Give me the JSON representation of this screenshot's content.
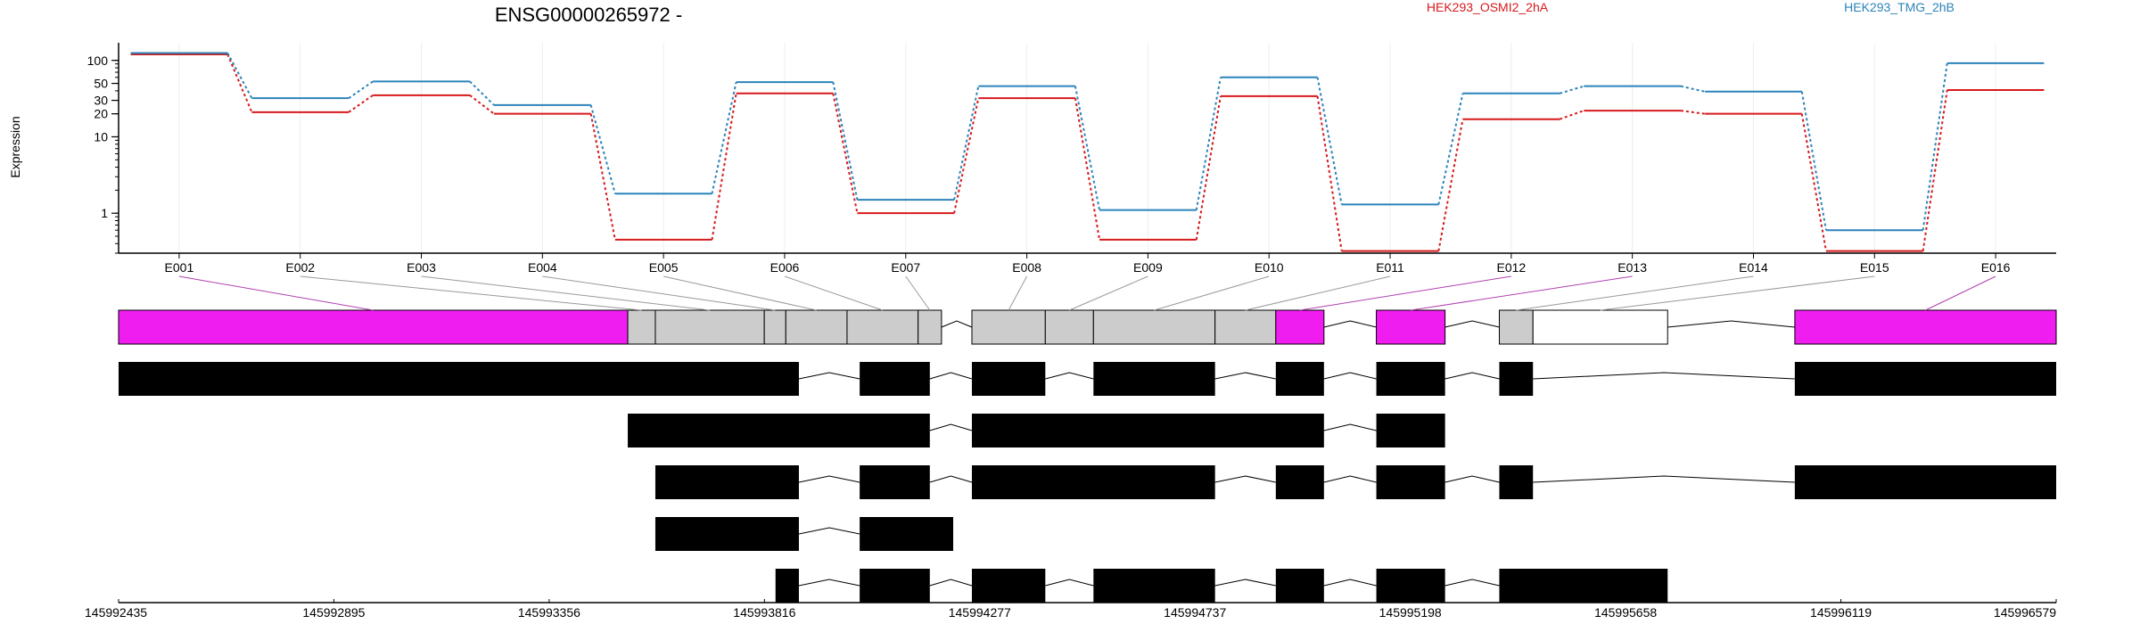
{
  "title": "ENSG00000265972 -",
  "chart_data": {
    "type": "line",
    "title": "ENSG00000265972 -",
    "xlabel": "",
    "ylabel": "Expression",
    "yscale": "log",
    "ylim": [
      0.3,
      170
    ],
    "yticks": [
      {
        "v": 1,
        "label": "1"
      },
      {
        "v": 10,
        "label": "10"
      },
      {
        "v": 20,
        "label": "20"
      },
      {
        "v": 30,
        "label": "30"
      },
      {
        "v": 50,
        "label": "50"
      },
      {
        "v": 100,
        "label": "100"
      }
    ],
    "categories": [
      "E001",
      "E002",
      "E003",
      "E004",
      "E005",
      "E006",
      "E007",
      "E008",
      "E009",
      "E010",
      "E011",
      "E012",
      "E013",
      "E014",
      "E015",
      "E016"
    ],
    "legend_position": "top-right",
    "grid": true,
    "series": [
      {
        "name": "HEK293_OSMI2_2hA",
        "color": "#d7191c",
        "values": [
          120,
          21,
          35,
          20,
          0.45,
          37,
          1.0,
          32,
          0.45,
          34,
          0.32,
          17,
          22,
          20,
          0.32,
          41
        ]
      },
      {
        "name": "HEK293_TMG_2hB",
        "color": "#2b83ba",
        "values": [
          125,
          32,
          53,
          26,
          1.8,
          52,
          1.5,
          46,
          1.1,
          60,
          1.3,
          37,
          46,
          39,
          0.6,
          92
        ]
      }
    ]
  },
  "genome": {
    "coord_ticks": [
      "145992435",
      "145992895",
      "145993356",
      "145993816",
      "145994277",
      "145994737",
      "145995198",
      "145995658",
      "145996119",
      "145996579"
    ],
    "start": 145992435,
    "end": 145996579,
    "gene_model": {
      "exons": [
        {
          "id": "E001",
          "start": 145992435,
          "end": 145993524,
          "color": "#f01df0"
        },
        {
          "id": "E002",
          "start": 145993524,
          "end": 145993583,
          "color": "#cccccc"
        },
        {
          "id": "E003",
          "start": 145993583,
          "end": 145993816,
          "color": "#cccccc"
        },
        {
          "id": "E004",
          "start": 145993816,
          "end": 145993862,
          "color": "#cccccc"
        },
        {
          "id": "E005",
          "start": 145993862,
          "end": 145993993,
          "color": "#cccccc"
        },
        {
          "id": "E006",
          "start": 145993993,
          "end": 145994145,
          "color": "#cccccc"
        },
        {
          "id": "E007",
          "start": 145994145,
          "end": 145994195,
          "color": "#cccccc"
        },
        {
          "id": "E008",
          "start": 145994260,
          "end": 145994417,
          "color": "#cccccc"
        },
        {
          "id": "E009",
          "start": 145994417,
          "end": 145994520,
          "color": "#cccccc"
        },
        {
          "id": "E010",
          "start": 145994520,
          "end": 145994780,
          "color": "#cccccc"
        },
        {
          "id": "E011",
          "start": 145994780,
          "end": 145994910,
          "color": "#cccccc"
        },
        {
          "id": "E012",
          "start": 145994910,
          "end": 145995013,
          "color": "#f01df0"
        },
        {
          "id": "E013",
          "start": 145995125,
          "end": 145995272,
          "color": "#f01df0"
        },
        {
          "id": "E014",
          "start": 145995388,
          "end": 145995460,
          "color": "#cccccc"
        },
        {
          "id": "E015",
          "start": 145995460,
          "end": 145995748,
          "color": "#ffffff"
        },
        {
          "id": "E016",
          "start": 145996020,
          "end": 145996579,
          "color": "#f01df0"
        }
      ],
      "highlight_color": "#f01df0",
      "connector_color": "#999999"
    },
    "transcripts": [
      [
        [
          145992435,
          145993890
        ],
        [
          145994020,
          145994170
        ],
        [
          145994260,
          145994417
        ],
        [
          145994520,
          145994780
        ],
        [
          145994910,
          145995013
        ],
        [
          145995125,
          145995272
        ],
        [
          145995388,
          145995460
        ],
        [
          145996020,
          145996579
        ]
      ],
      [
        [
          145993524,
          145994170
        ],
        [
          145994260,
          145995013
        ],
        [
          145995125,
          145995272
        ]
      ],
      [
        [
          145993583,
          145993890
        ],
        [
          145994020,
          145994170
        ],
        [
          145994260,
          145994780
        ],
        [
          145994910,
          145995013
        ],
        [
          145995125,
          145995272
        ],
        [
          145995388,
          145995460
        ],
        [
          145996020,
          145996579
        ]
      ],
      [
        [
          145993583,
          145993890
        ],
        [
          145994020,
          145994220
        ]
      ],
      [
        [
          145993840,
          145993890
        ],
        [
          145994020,
          145994170
        ],
        [
          145994260,
          145994417
        ],
        [
          145994520,
          145994780
        ],
        [
          145994910,
          145995013
        ],
        [
          145995125,
          145995272
        ],
        [
          145995388,
          145995748
        ]
      ]
    ]
  }
}
